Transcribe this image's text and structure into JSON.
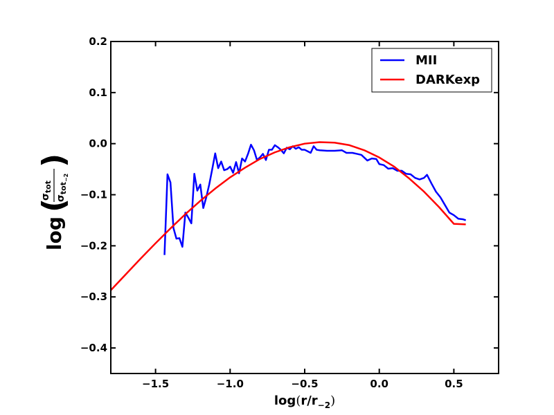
{
  "chart_data": {
    "type": "line",
    "title": "",
    "xlabel": "log(r/r_{-2})",
    "ylabel": "log(σ_tot / σ_tot_{-2})",
    "xlabel_parts": {
      "main": "log",
      "open": "(",
      "var": "r/r",
      "sub": "−2",
      "close": ")"
    },
    "ylabel_parts": {
      "main": "log",
      "num": "σ",
      "num_sub": "tot",
      "den": "σ",
      "den_sub": "tot",
      "den_subsub": "−2"
    },
    "xlim": [
      -1.8,
      0.8
    ],
    "ylim": [
      -0.45,
      0.2
    ],
    "xticks": [
      -1.5,
      -1.0,
      -0.5,
      0.0,
      0.5
    ],
    "xtick_labels": [
      "−1.5",
      "−1.0",
      "−0.5",
      "0.0",
      "0.5"
    ],
    "yticks": [
      -0.4,
      -0.3,
      -0.2,
      -0.1,
      0.0,
      0.1,
      0.2
    ],
    "ytick_labels": [
      "−0.4",
      "−0.3",
      "−0.2",
      "−0.1",
      "0.0",
      "0.1",
      "0.2"
    ],
    "grid": false,
    "legend_position": "top-right",
    "series": [
      {
        "name": "MII",
        "color": "#0000ff",
        "points": [
          [
            -1.44,
            -0.218
          ],
          [
            -1.42,
            -0.06
          ],
          [
            -1.4,
            -0.076
          ],
          [
            -1.38,
            -0.165
          ],
          [
            -1.36,
            -0.186
          ],
          [
            -1.34,
            -0.185
          ],
          [
            -1.32,
            -0.202
          ],
          [
            -1.3,
            -0.135
          ],
          [
            -1.28,
            -0.145
          ],
          [
            -1.26,
            -0.156
          ],
          [
            -1.24,
            -0.059
          ],
          [
            -1.22,
            -0.092
          ],
          [
            -1.2,
            -0.08
          ],
          [
            -1.18,
            -0.126
          ],
          [
            -1.16,
            -0.105
          ],
          [
            -1.14,
            -0.08
          ],
          [
            -1.12,
            -0.05
          ],
          [
            -1.1,
            -0.019
          ],
          [
            -1.08,
            -0.048
          ],
          [
            -1.06,
            -0.035
          ],
          [
            -1.04,
            -0.052
          ],
          [
            -1.02,
            -0.05
          ],
          [
            -1.0,
            -0.045
          ],
          [
            -0.98,
            -0.057
          ],
          [
            -0.96,
            -0.036
          ],
          [
            -0.94,
            -0.058
          ],
          [
            -0.92,
            -0.029
          ],
          [
            -0.9,
            -0.035
          ],
          [
            -0.88,
            -0.02
          ],
          [
            -0.86,
            -0.002
          ],
          [
            -0.84,
            -0.013
          ],
          [
            -0.82,
            -0.032
          ],
          [
            -0.8,
            -0.027
          ],
          [
            -0.78,
            -0.02
          ],
          [
            -0.76,
            -0.032
          ],
          [
            -0.74,
            -0.012
          ],
          [
            -0.72,
            -0.012
          ],
          [
            -0.7,
            -0.003
          ],
          [
            -0.68,
            -0.007
          ],
          [
            -0.66,
            -0.012
          ],
          [
            -0.64,
            -0.019
          ],
          [
            -0.62,
            -0.008
          ],
          [
            -0.6,
            -0.011
          ],
          [
            -0.58,
            -0.005
          ],
          [
            -0.56,
            -0.01
          ],
          [
            -0.54,
            -0.007
          ],
          [
            -0.52,
            -0.012
          ],
          [
            -0.5,
            -0.012
          ],
          [
            -0.48,
            -0.015
          ],
          [
            -0.46,
            -0.018
          ],
          [
            -0.44,
            -0.005
          ],
          [
            -0.42,
            -0.012
          ],
          [
            -0.4,
            -0.013
          ],
          [
            -0.35,
            -0.014
          ],
          [
            -0.3,
            -0.014
          ],
          [
            -0.25,
            -0.013
          ],
          [
            -0.22,
            -0.018
          ],
          [
            -0.18,
            -0.018
          ],
          [
            -0.15,
            -0.02
          ],
          [
            -0.12,
            -0.022
          ],
          [
            -0.08,
            -0.033
          ],
          [
            -0.05,
            -0.029
          ],
          [
            -0.02,
            -0.03
          ],
          [
            0.0,
            -0.04
          ],
          [
            0.03,
            -0.042
          ],
          [
            0.06,
            -0.049
          ],
          [
            0.09,
            -0.048
          ],
          [
            0.12,
            -0.053
          ],
          [
            0.15,
            -0.053
          ],
          [
            0.18,
            -0.059
          ],
          [
            0.21,
            -0.06
          ],
          [
            0.24,
            -0.067
          ],
          [
            0.27,
            -0.07
          ],
          [
            0.3,
            -0.067
          ],
          [
            0.32,
            -0.061
          ],
          [
            0.35,
            -0.078
          ],
          [
            0.38,
            -0.094
          ],
          [
            0.41,
            -0.105
          ],
          [
            0.44,
            -0.12
          ],
          [
            0.47,
            -0.135
          ],
          [
            0.5,
            -0.14
          ],
          [
            0.53,
            -0.147
          ],
          [
            0.56,
            -0.148
          ],
          [
            0.58,
            -0.15
          ]
        ]
      },
      {
        "name": "DARKexp",
        "color": "#ff0000",
        "points": [
          [
            -1.8,
            -0.287
          ],
          [
            -1.7,
            -0.256
          ],
          [
            -1.6,
            -0.225
          ],
          [
            -1.5,
            -0.195
          ],
          [
            -1.4,
            -0.166
          ],
          [
            -1.3,
            -0.138
          ],
          [
            -1.2,
            -0.112
          ],
          [
            -1.1,
            -0.088
          ],
          [
            -1.0,
            -0.066
          ],
          [
            -0.9,
            -0.047
          ],
          [
            -0.8,
            -0.03
          ],
          [
            -0.7,
            -0.017
          ],
          [
            -0.6,
            -0.007
          ],
          [
            -0.5,
            0.0
          ],
          [
            -0.4,
            0.003
          ],
          [
            -0.3,
            0.002
          ],
          [
            -0.2,
            -0.003
          ],
          [
            -0.1,
            -0.013
          ],
          [
            0.0,
            -0.027
          ],
          [
            0.1,
            -0.045
          ],
          [
            0.2,
            -0.068
          ],
          [
            0.3,
            -0.094
          ],
          [
            0.4,
            -0.124
          ],
          [
            0.5,
            -0.157
          ],
          [
            0.58,
            -0.158
          ]
        ]
      }
    ]
  }
}
